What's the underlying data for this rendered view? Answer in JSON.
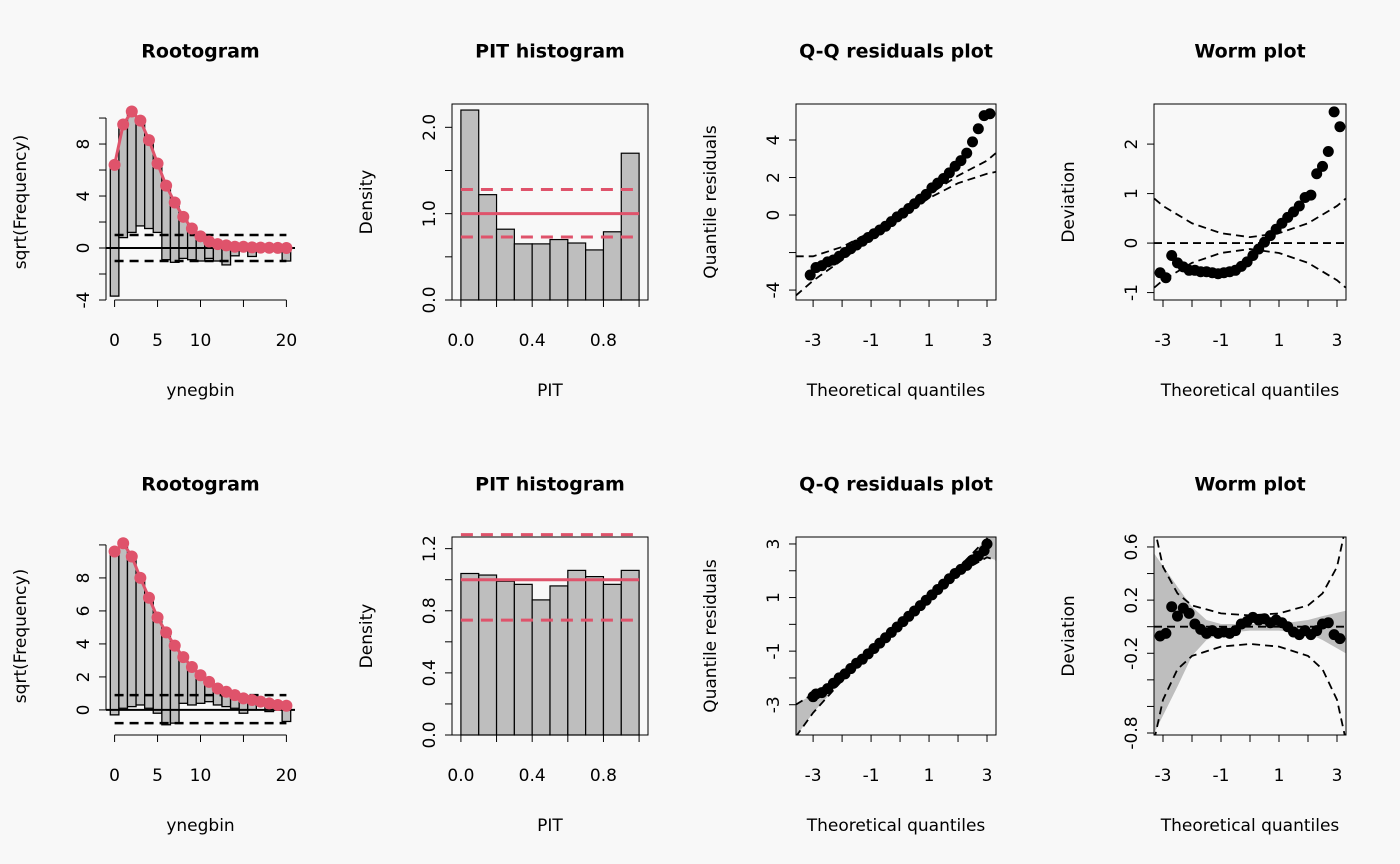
{
  "chart_data": [
    {
      "type": "rootogram",
      "title": "Rootogram",
      "x_label": "ynegbin",
      "y_label": "sqrt(Frequency)",
      "xlim": [
        -1,
        21
      ],
      "ylim": [
        -4,
        11.08
      ],
      "xticks": [
        0,
        5,
        10,
        20
      ],
      "xminor": [
        15
      ],
      "yticks": [
        -4,
        0,
        4,
        8
      ],
      "yminor": [
        -2,
        2,
        6,
        10
      ],
      "x": [
        0,
        1,
        2,
        3,
        4,
        5,
        6,
        7,
        8,
        9,
        10,
        11,
        12,
        13,
        14,
        15,
        16,
        17,
        18,
        19,
        20
      ],
      "expected": [
        6.4,
        9.5,
        10.5,
        9.8,
        8.3,
        6.5,
        4.8,
        3.5,
        2.4,
        1.5,
        0.9,
        0.5,
        0.3,
        0.2,
        0.1,
        0.1,
        0.05,
        0.03,
        0.02,
        0.01,
        0
      ],
      "observed": [
        10.1,
        8.7,
        9.3,
        8.1,
        6.8,
        5.3,
        5.7,
        4.6,
        3.2,
        2.4,
        1.9,
        1.3,
        1.3,
        1.5,
        0.7,
        0.1,
        0.7,
        0,
        0,
        0,
        1.0
      ],
      "bounds": [
        -1,
        1
      ],
      "bar_color": "#bebebe",
      "point_color": "#df536b"
    },
    {
      "type": "histogram",
      "title": "PIT histogram",
      "x_label": "PIT",
      "y_label": "Density",
      "xlim": [
        -0.05,
        1.05
      ],
      "ylim": [
        0,
        2.27
      ],
      "xticks": [
        {
          "value": 0,
          "label": "0.0"
        },
        0.4,
        0.8
      ],
      "xminor": [
        0.2,
        0.6,
        1
      ],
      "yticks": [
        {
          "value": 0,
          "label": "0.0"
        },
        {
          "value": 1,
          "label": "1.0"
        },
        {
          "value": 2,
          "label": "2.0"
        }
      ],
      "yminor": [
        0.5,
        1.5
      ],
      "bins": [
        0,
        0.1,
        0.2,
        0.3,
        0.4,
        0.5,
        0.6,
        0.7,
        0.8,
        0.9,
        1
      ],
      "values": [
        2.2,
        1.22,
        0.82,
        0.65,
        0.65,
        0.7,
        0.66,
        0.58,
        0.79,
        1.7
      ],
      "reference": 1,
      "limits": [
        0.73,
        1.28
      ],
      "bar_color": "#bebebe",
      "line_color": "#df536b"
    },
    {
      "type": "qq",
      "title": "Q-Q residuals plot",
      "x_label": "Theoretical quantiles",
      "y_label": "Quantile residuals",
      "xlim": [
        -3.59,
        3.31
      ],
      "ylim": [
        -4.53,
        5.92
      ],
      "xticks": [
        -3,
        -1,
        1,
        3
      ],
      "xminor": [
        -2,
        0,
        2
      ],
      "yticks": [
        -4,
        0,
        2,
        4
      ],
      "yminor": [
        -2
      ],
      "x": [
        -3.1,
        -2.9,
        -2.7,
        -2.5,
        -2.3,
        -2.1,
        -1.9,
        -1.7,
        -1.5,
        -1.3,
        -1.1,
        -0.9,
        -0.7,
        -0.5,
        -0.3,
        -0.1,
        0.1,
        0.3,
        0.5,
        0.7,
        0.9,
        1.1,
        1.3,
        1.5,
        1.7,
        1.9,
        2.1,
        2.3,
        2.5,
        2.7,
        2.9,
        3.1
      ],
      "y": [
        -3.2,
        -2.8,
        -2.7,
        -2.5,
        -2.4,
        -2.2,
        -2.0,
        -1.8,
        -1.6,
        -1.4,
        -1.2,
        -1.0,
        -0.8,
        -0.6,
        -0.35,
        -0.1,
        0.1,
        0.35,
        0.6,
        0.85,
        1.1,
        1.45,
        1.7,
        1.95,
        2.25,
        2.6,
        2.9,
        3.3,
        3.9,
        4.6,
        5.3,
        5.4
      ],
      "envelope": {
        "x": [
          -3.6,
          -3,
          -2,
          -1,
          0,
          1,
          2,
          3,
          3.3
        ],
        "lower": [
          -4.3,
          -3.5,
          -2.4,
          -1.2,
          -0.1,
          0.9,
          1.7,
          2.2,
          2.3
        ],
        "upper": [
          -2.2,
          -2.2,
          -1.7,
          -0.9,
          0.1,
          1.1,
          2.1,
          2.9,
          3.3
        ]
      },
      "point_color": "#000000",
      "shade_color": "#bebebe"
    },
    {
      "type": "worm",
      "title": "Worm plot",
      "x_label": "Theoretical quantiles",
      "y_label": "Deviation",
      "xlim": [
        -3.31,
        3.31
      ],
      "ylim": [
        -1.15,
        2.81
      ],
      "xticks": [
        -3,
        -1,
        1,
        3
      ],
      "xminor": [
        -2,
        0,
        2
      ],
      "yticks": [
        -1,
        0,
        1,
        2
      ],
      "yminor": [],
      "x": [
        -3.1,
        -2.9,
        -2.7,
        -2.5,
        -2.3,
        -2.1,
        -1.9,
        -1.7,
        -1.5,
        -1.3,
        -1.1,
        -0.9,
        -0.7,
        -0.5,
        -0.3,
        -0.1,
        0.1,
        0.3,
        0.5,
        0.7,
        0.9,
        1.1,
        1.3,
        1.5,
        1.7,
        1.9,
        2.1,
        2.3,
        2.5,
        2.7,
        2.9,
        3.1
      ],
      "y": [
        -0.6,
        -0.7,
        -0.25,
        -0.4,
        -0.48,
        -0.55,
        -0.55,
        -0.58,
        -0.58,
        -0.6,
        -0.62,
        -0.6,
        -0.58,
        -0.55,
        -0.47,
        -0.38,
        -0.25,
        -0.12,
        0.02,
        0.15,
        0.28,
        0.4,
        0.52,
        0.63,
        0.75,
        0.92,
        0.97,
        1.4,
        1.55,
        1.85,
        2.65,
        2.35
      ],
      "hline": 0,
      "envelope": {
        "x": [
          -3.3,
          -3,
          -2,
          -1,
          0,
          1,
          2,
          3,
          3.3
        ],
        "lower": [
          -0.9,
          -0.75,
          -0.4,
          -0.2,
          -0.12,
          -0.2,
          -0.4,
          -0.75,
          -0.9
        ],
        "upper": [
          0.9,
          0.75,
          0.4,
          0.2,
          0.12,
          0.2,
          0.4,
          0.75,
          0.9
        ]
      },
      "point_color": "#000000",
      "shade_color": "#bebebe"
    },
    {
      "type": "rootogram",
      "title": "Rootogram",
      "x_label": "ynegbin",
      "y_label": "sqrt(Frequency)",
      "xlim": [
        -1,
        21
      ],
      "ylim": [
        -1.52,
        10.48
      ],
      "xticks": [
        0,
        5,
        10,
        20
      ],
      "xminor": [
        15
      ],
      "yticks": [
        0,
        2,
        4,
        6,
        8
      ],
      "yminor": [
        10
      ],
      "x": [
        0,
        1,
        2,
        3,
        4,
        5,
        6,
        7,
        8,
        9,
        10,
        11,
        12,
        13,
        14,
        15,
        16,
        17,
        18,
        19,
        20
      ],
      "expected": [
        9.6,
        10.1,
        9.3,
        8.0,
        6.8,
        5.6,
        4.7,
        3.9,
        3.2,
        2.6,
        2.1,
        1.7,
        1.3,
        1.1,
        0.9,
        0.7,
        0.6,
        0.5,
        0.4,
        0.3,
        0.25
      ],
      "observed": [
        9.9,
        10.0,
        9.1,
        7.7,
        6.7,
        5.8,
        5.6,
        4.7,
        2.8,
        2.3,
        1.7,
        1.2,
        1.0,
        0.9,
        0.8,
        0.9,
        0.6,
        0.2,
        0.5,
        0.2,
        0.95
      ],
      "bounds": [
        -0.8,
        0.9
      ],
      "bar_color": "#bebebe",
      "point_color": "#df536b"
    },
    {
      "type": "histogram",
      "title": "PIT histogram",
      "x_label": "PIT",
      "y_label": "Density",
      "xlim": [
        -0.05,
        1.05
      ],
      "ylim": [
        0,
        1.275
      ],
      "xticks": [
        {
          "value": 0,
          "label": "0.0"
        },
        0.4,
        0.8
      ],
      "xminor": [
        0.2,
        0.6,
        1
      ],
      "yticks": [
        {
          "value": 0,
          "label": "0.0"
        },
        0.4,
        0.8,
        1.2
      ],
      "yminor": [
        0.2,
        0.6,
        1
      ],
      "bins": [
        0,
        0.1,
        0.2,
        0.3,
        0.4,
        0.5,
        0.6,
        0.7,
        0.8,
        0.9,
        1
      ],
      "values": [
        1.04,
        1.03,
        0.99,
        0.97,
        0.87,
        0.96,
        1.06,
        1.02,
        0.97,
        1.06
      ],
      "reference": 1,
      "limits": [
        0.74,
        1.29
      ],
      "bar_color": "#bebebe",
      "line_color": "#df536b"
    },
    {
      "type": "qq",
      "title": "Q-Q residuals plot",
      "x_label": "Theoretical quantiles",
      "y_label": "Quantile residuals",
      "xlim": [
        -3.59,
        3.31
      ],
      "ylim": [
        -4.13,
        3.26
      ],
      "xticks": [
        -3,
        -1,
        1,
        3
      ],
      "xminor": [
        -2,
        0,
        2
      ],
      "yticks": [
        -3,
        -1,
        1,
        3
      ],
      "yminor": [
        -2,
        0,
        2
      ],
      "x": [
        -3.0,
        -2.9,
        -2.7,
        -2.5,
        -2.3,
        -2.1,
        -1.9,
        -1.7,
        -1.5,
        -1.3,
        -1.1,
        -0.9,
        -0.7,
        -0.5,
        -0.3,
        -0.1,
        0.1,
        0.3,
        0.5,
        0.7,
        0.9,
        1.1,
        1.3,
        1.5,
        1.7,
        1.9,
        2.1,
        2.3,
        2.5,
        2.7,
        2.9,
        3.0
      ],
      "y": [
        -2.7,
        -2.6,
        -2.55,
        -2.4,
        -2.2,
        -2.0,
        -1.85,
        -1.65,
        -1.45,
        -1.3,
        -1.1,
        -0.9,
        -0.7,
        -0.5,
        -0.3,
        -0.1,
        0.1,
        0.3,
        0.5,
        0.7,
        0.9,
        1.1,
        1.3,
        1.5,
        1.7,
        1.9,
        2.05,
        2.2,
        2.4,
        2.55,
        2.75,
        3.0
      ],
      "envelope": {
        "x": [
          -3.6,
          -3,
          -2,
          0,
          2,
          3,
          3.3
        ],
        "lower": [
          -4.2,
          -3.3,
          -2.1,
          -0.05,
          1.9,
          2.5,
          2.4
        ],
        "upper": [
          -3,
          -2.6,
          -1.9,
          0.05,
          2.1,
          3.2,
          3.6
        ]
      },
      "shade": {
        "x": [
          -3.6,
          -3,
          -2,
          0,
          2,
          3,
          3.3
        ],
        "lower": [
          -4.2,
          -3.3,
          -2.1,
          -0.05,
          1.9,
          2.5,
          2.4
        ],
        "upper": [
          -3,
          -2.6,
          -1.9,
          0.05,
          2.1,
          3.2,
          3.6
        ]
      },
      "point_color": "#000000",
      "shade_color": "#bebebe"
    },
    {
      "type": "worm",
      "title": "Worm plot",
      "x_label": "Theoretical quantiles",
      "y_label": "Deviation",
      "xlim": [
        -3.31,
        3.31
      ],
      "ylim": [
        -0.815,
        0.675
      ],
      "xticks": [
        -3,
        -1,
        1,
        3
      ],
      "xminor": [
        -2,
        0,
        2
      ],
      "yticks": [
        -0.8,
        -0.2,
        0.2,
        0.6
      ],
      "yminor": [
        -0.6,
        -0.4,
        0,
        0.4
      ],
      "x": [
        -3.1,
        -2.9,
        -2.7,
        -2.5,
        -2.3,
        -2.1,
        -1.9,
        -1.7,
        -1.5,
        -1.3,
        -1.1,
        -0.9,
        -0.7,
        -0.5,
        -0.3,
        -0.1,
        0.1,
        0.3,
        0.5,
        0.7,
        0.9,
        1.1,
        1.3,
        1.5,
        1.7,
        1.9,
        2.1,
        2.3,
        2.5,
        2.7,
        2.9,
        3.1
      ],
      "y": [
        -0.07,
        -0.05,
        0.15,
        0.08,
        0.14,
        0.1,
        0.02,
        -0.02,
        -0.05,
        -0.03,
        -0.05,
        -0.04,
        -0.05,
        -0.03,
        0.02,
        0.04,
        0.07,
        0.05,
        0.06,
        0.03,
        0.05,
        0.03,
        0.0,
        -0.04,
        -0.06,
        -0.03,
        -0.06,
        -0.03,
        0.02,
        0.03,
        -0.06,
        -0.09
      ],
      "hline": 0,
      "envelope": {
        "x": [
          -3.3,
          -3,
          -2.5,
          -2,
          -1,
          0,
          1,
          2,
          2.5,
          3,
          3.3
        ],
        "lower": [
          -0.85,
          -0.55,
          -0.32,
          -0.22,
          -0.15,
          -0.13,
          -0.15,
          -0.22,
          -0.32,
          -0.55,
          -0.85
        ],
        "upper": [
          0.75,
          0.45,
          0.25,
          0.16,
          0.1,
          0.085,
          0.1,
          0.16,
          0.25,
          0.45,
          0.75
        ]
      },
      "shade": {
        "x": [
          -3.3,
          -2.5,
          -2,
          -1.5,
          -1,
          0,
          1,
          2,
          2.5,
          3.3
        ],
        "lower": [
          -0.8,
          -0.45,
          -0.22,
          -0.1,
          -0.05,
          -0.03,
          -0.03,
          -0.05,
          -0.1,
          -0.2
        ],
        "upper": [
          0.55,
          0.3,
          0.15,
          0.05,
          0.02,
          0.02,
          0.02,
          0.05,
          0.08,
          0.12
        ]
      },
      "point_color": "#000000",
      "shade_color": "#bebebe"
    }
  ]
}
